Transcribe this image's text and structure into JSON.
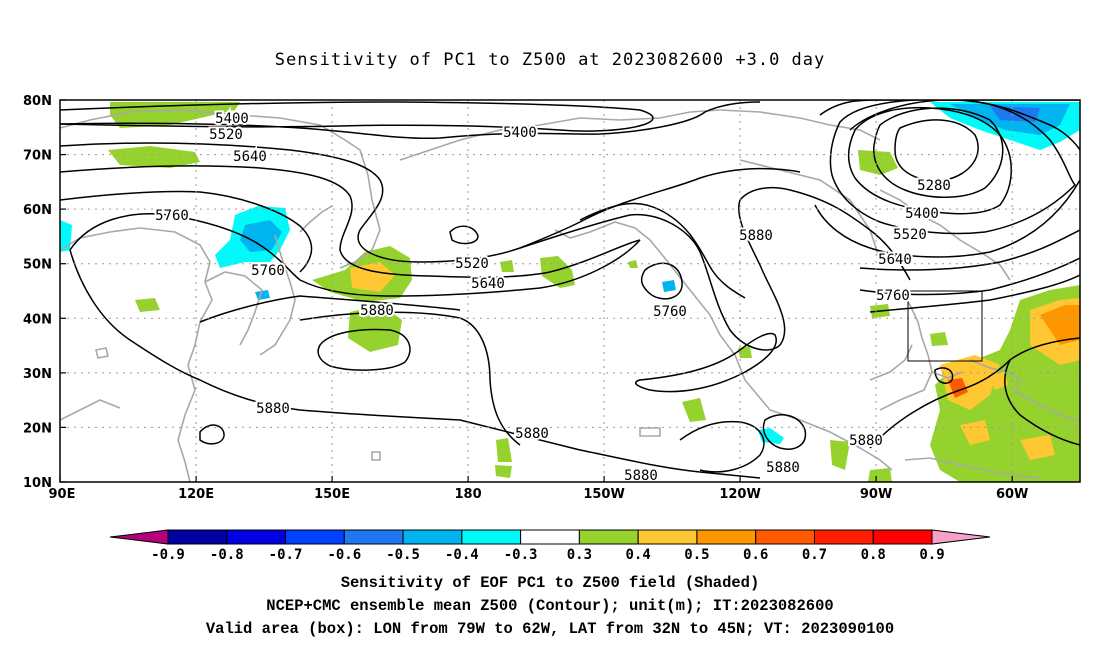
{
  "title": "Sensitivity of PC1 to Z500 at 2023082600 +3.0 day",
  "lat_labels": [
    "80N",
    "70N",
    "60N",
    "50N",
    "40N",
    "30N",
    "20N",
    "10N"
  ],
  "lon_labels": [
    "90E",
    "120E",
    "150E",
    "180",
    "150W",
    "120W",
    "90W",
    "60W"
  ],
  "contour_labels": [
    "5400",
    "5520",
    "5640",
    "5760",
    "5400",
    "5280",
    "5400",
    "5520",
    "5640",
    "5760",
    "5880",
    "5520",
    "5640",
    "5760",
    "5760",
    "5880",
    "5880",
    "5880",
    "5880",
    "5880"
  ],
  "colorbar": {
    "ticks": [
      "-0.9",
      "-0.8",
      "-0.7",
      "-0.6",
      "-0.5",
      "-0.4",
      "-0.3",
      "0.3",
      "0.4",
      "0.5",
      "0.6",
      "0.7",
      "0.8",
      "0.9"
    ],
    "colors": [
      "#b4007a",
      "#0000a0",
      "#0000e0",
      "#0040ff",
      "#1e78f0",
      "#00b4f0",
      "#00fafa",
      "#ffffff",
      "#96d22d",
      "#ffc832",
      "#ff9600",
      "#ff5a00",
      "#ff1e00",
      "#ff0000",
      "#f8a0c8"
    ]
  },
  "captions": [
    "Sensitivity of EOF PC1 to Z500 field (Shaded)",
    "NCEP+CMC ensemble mean Z500 (Contour); unit(m); IT:2023082600",
    "Valid area (box): LON from 79W to 62W, LAT from 32N to 45N; VT: 2023090100"
  ],
  "valid_box": {
    "lon_w": -79,
    "lon_e": -62,
    "lat_s": 32,
    "lat_n": 45
  }
}
